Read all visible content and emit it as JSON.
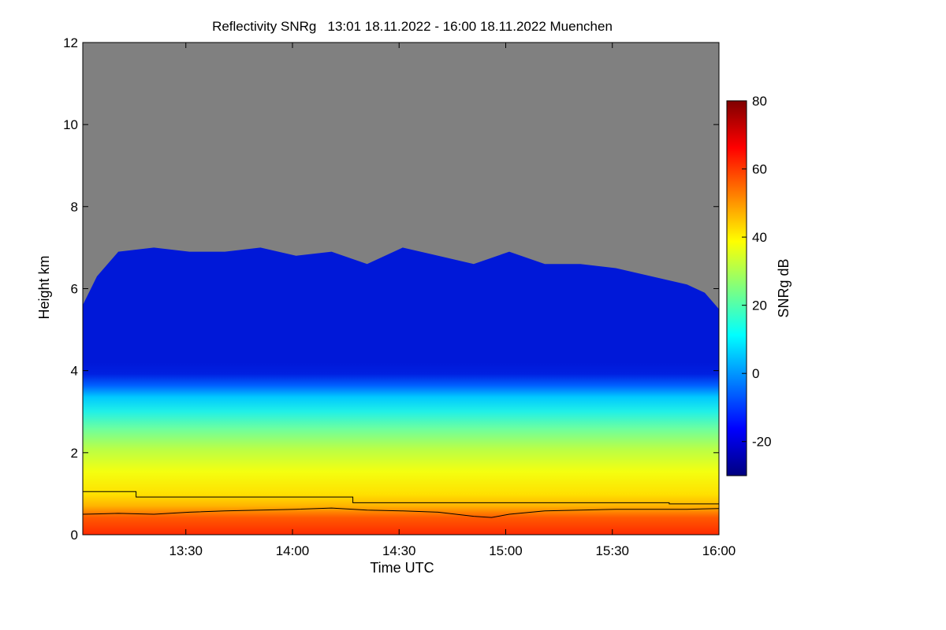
{
  "chart_data": {
    "type": "heatmap",
    "title": "Reflectivity SNRg   13:01 18.11.2022 - 16:00 18.11.2022 Muenchen",
    "xlabel": "Time UTC",
    "ylabel": "Height km",
    "colorbar_label": "SNRg dB",
    "x_range": [
      "13:01",
      "16:00"
    ],
    "x_ticks": [
      "13:30",
      "14:00",
      "14:30",
      "15:00",
      "15:30",
      "16:00"
    ],
    "x_tick_minutes": [
      29,
      59,
      89,
      119,
      149,
      179
    ],
    "x_span_minutes": 179,
    "ylim": [
      0,
      12
    ],
    "y_ticks": [
      0,
      2,
      4,
      6,
      8,
      10,
      12
    ],
    "colorbar_range": [
      -30,
      80
    ],
    "colorbar_ticks": [
      -20,
      0,
      20,
      40,
      60,
      80
    ],
    "background_color": "#808080",
    "colormap": [
      "#00007f",
      "#0000ff",
      "#007fff",
      "#00ffff",
      "#7fff7f",
      "#ffff00",
      "#ff7f00",
      "#ff0000",
      "#7f0000"
    ],
    "cloud_top_km": [
      [
        0,
        5.6
      ],
      [
        4,
        6.3
      ],
      [
        10,
        6.9
      ],
      [
        20,
        7.0
      ],
      [
        30,
        6.9
      ],
      [
        40,
        6.9
      ],
      [
        50,
        7.0
      ],
      [
        60,
        6.8
      ],
      [
        70,
        6.9
      ],
      [
        80,
        6.6
      ],
      [
        90,
        7.0
      ],
      [
        100,
        6.8
      ],
      [
        110,
        6.6
      ],
      [
        120,
        6.9
      ],
      [
        130,
        6.6
      ],
      [
        140,
        6.6
      ],
      [
        150,
        6.5
      ],
      [
        160,
        6.3
      ],
      [
        170,
        6.1
      ],
      [
        175,
        5.9
      ],
      [
        179,
        5.5
      ]
    ],
    "boundary_line_step_km": [
      [
        0,
        1.05
      ],
      [
        15,
        1.05
      ],
      [
        15,
        0.92
      ],
      [
        76,
        0.92
      ],
      [
        76,
        0.78
      ],
      [
        165,
        0.78
      ],
      [
        165,
        0.75
      ],
      [
        179,
        0.75
      ]
    ],
    "boundary_line_wavy_km": [
      [
        0,
        0.5
      ],
      [
        10,
        0.52
      ],
      [
        20,
        0.5
      ],
      [
        30,
        0.55
      ],
      [
        40,
        0.58
      ],
      [
        50,
        0.6
      ],
      [
        60,
        0.62
      ],
      [
        70,
        0.65
      ],
      [
        80,
        0.6
      ],
      [
        90,
        0.58
      ],
      [
        100,
        0.55
      ],
      [
        110,
        0.45
      ],
      [
        115,
        0.42
      ],
      [
        120,
        0.5
      ],
      [
        130,
        0.58
      ],
      [
        140,
        0.6
      ],
      [
        150,
        0.62
      ],
      [
        160,
        0.62
      ],
      [
        170,
        0.62
      ],
      [
        179,
        0.64
      ]
    ]
  }
}
